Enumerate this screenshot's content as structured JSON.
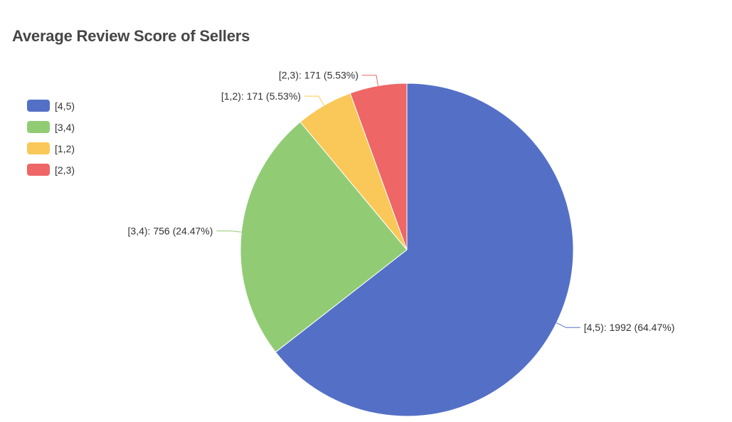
{
  "chart_data": {
    "type": "pie",
    "title": "Average Review Score of Sellers",
    "legend_position": "top-left",
    "categories": [
      "[4,5)",
      "[3,4)",
      "[1,2)",
      "[2,3)"
    ],
    "values": [
      1992,
      756,
      171,
      171
    ],
    "percentages": [
      "64.47%",
      "24.47%",
      "5.53%",
      "5.53%"
    ],
    "labels": [
      "[4,5): 1992 (64.47%)",
      "[3,4): 756 (24.47%)",
      "[1,2): 171 (5.53%)",
      "[2,3): 171 (5.53%)"
    ],
    "colors": [
      "#5470c6",
      "#91cc75",
      "#fac858",
      "#ee6666"
    ]
  }
}
